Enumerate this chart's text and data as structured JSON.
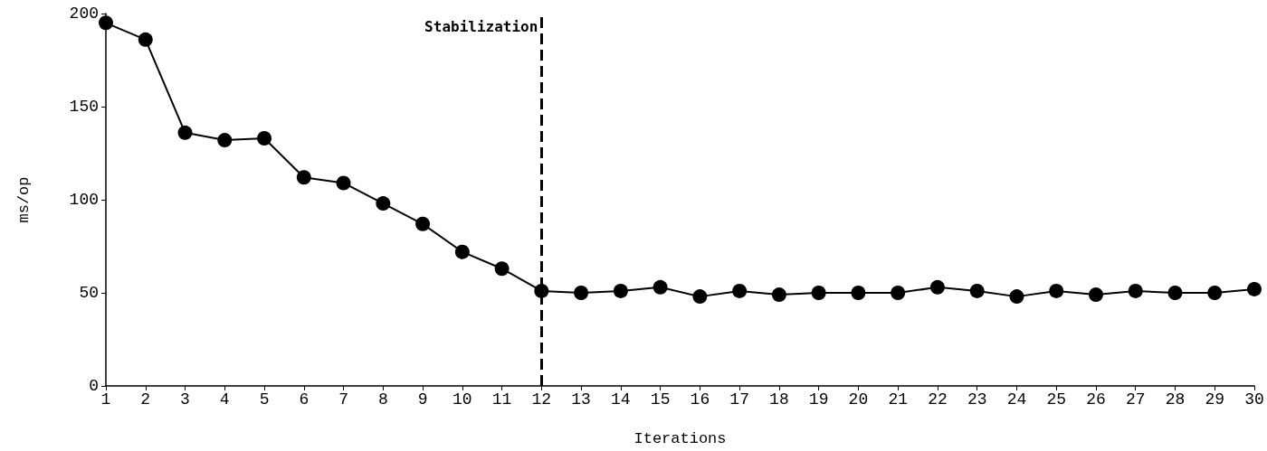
{
  "chart_data": {
    "type": "line",
    "xlabel": "Iterations",
    "ylabel": "ms/op",
    "x": [
      1,
      2,
      3,
      4,
      5,
      6,
      7,
      8,
      9,
      10,
      11,
      12,
      13,
      14,
      15,
      16,
      17,
      18,
      19,
      20,
      21,
      22,
      23,
      24,
      25,
      26,
      27,
      28,
      29,
      30
    ],
    "series": [
      {
        "color": "#000000",
        "values": [
          195,
          186,
          136,
          132,
          133,
          112,
          109,
          98,
          87,
          72,
          63,
          51,
          50,
          51,
          53,
          48,
          51,
          49,
          50,
          50,
          50,
          53,
          51,
          48,
          51,
          49,
          51,
          50,
          50,
          52
        ]
      }
    ],
    "xlim": [
      1,
      30
    ],
    "xticks": [
      1,
      2,
      3,
      4,
      5,
      6,
      7,
      8,
      9,
      10,
      11,
      12,
      13,
      14,
      15,
      16,
      17,
      18,
      19,
      20,
      21,
      22,
      23,
      24,
      25,
      26,
      27,
      28,
      29,
      30
    ],
    "ylim": [
      0,
      200
    ],
    "yticks": [
      0,
      50,
      100,
      150,
      200
    ],
    "ref_lines": [
      {
        "axis": "x",
        "value": 12,
        "label": "Stabilization",
        "color": "#000000",
        "line_style": "dashed"
      }
    ],
    "marker": "circle",
    "line_style": "solid",
    "grid": false
  }
}
